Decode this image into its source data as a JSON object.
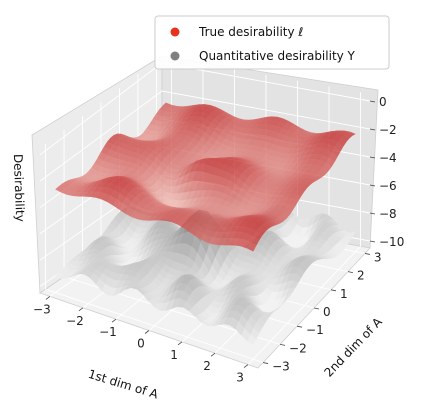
{
  "chart_data": {
    "type": "surface3d",
    "title": "",
    "xlabel": "1st dim of A",
    "ylabel": "2nd dim of A",
    "zlabel": "Desirability",
    "xlim": [
      -3.3,
      3.3
    ],
    "ylim": [
      -3.3,
      3.3
    ],
    "zlim": [
      -10.5,
      0.5
    ],
    "x_ticks": [
      "−3",
      "−2",
      "−1",
      "0",
      "1",
      "2",
      "3"
    ],
    "y_ticks": [
      "−3",
      "−2",
      "−1",
      "0",
      "1",
      "2",
      "3"
    ],
    "z_ticks": [
      "0",
      "−2",
      "−4",
      "−6",
      "−8",
      "−10"
    ],
    "grid": true,
    "legend_position": "top-right",
    "series": [
      {
        "name": "True desirability ℓ",
        "color": "#e8301f",
        "colormap": "Reds"
      },
      {
        "name": "Quantitative desirability Y",
        "color": "#808080",
        "colormap": "Greys"
      }
    ]
  }
}
